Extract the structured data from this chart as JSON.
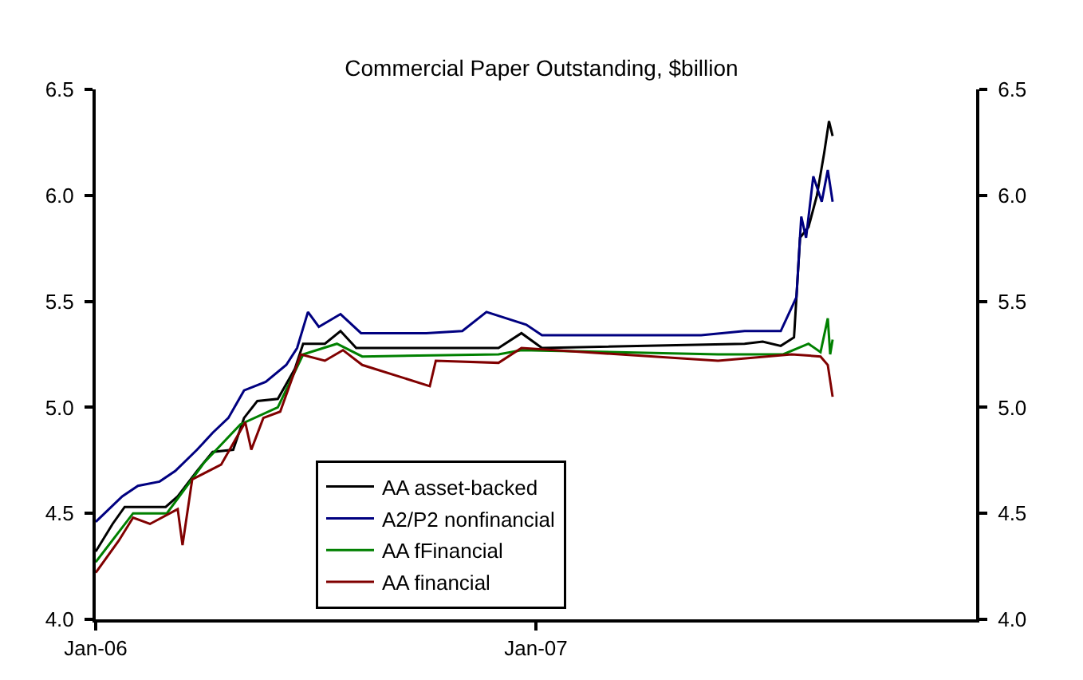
{
  "chart_data": {
    "type": "line",
    "title": "Commercial Paper Outstanding, $billion",
    "xlim": [
      "2006-01-01",
      "2008-01-01"
    ],
    "xticks": [
      {
        "value": "2006-01-01",
        "label": "Jan-06"
      },
      {
        "value": "2007-01-01",
        "label": "Jan-07"
      }
    ],
    "ylim": [
      4.0,
      6.5
    ],
    "yticks": [
      {
        "value": 4.0,
        "label": "4.0"
      },
      {
        "value": 4.5,
        "label": "4.5"
      },
      {
        "value": 5.0,
        "label": "5.0"
      },
      {
        "value": 5.5,
        "label": "5.5"
      },
      {
        "value": 6.0,
        "label": "6.0"
      },
      {
        "value": 6.5,
        "label": "6.5"
      }
    ],
    "y2lim": [
      4.0,
      6.5
    ],
    "y2ticks": [
      {
        "value": 4.0,
        "label": "4.0"
      },
      {
        "value": 4.5,
        "label": "4.5"
      },
      {
        "value": 5.0,
        "label": "5.0"
      },
      {
        "value": 5.5,
        "label": "5.5"
      },
      {
        "value": 6.0,
        "label": "6.0"
      },
      {
        "value": 6.5,
        "label": "6.5"
      }
    ],
    "grid": false,
    "legend": "bottom",
    "marker": "none",
    "line_style": "solid",
    "series": [
      {
        "name": "AA asset-backed",
        "color": "#000000",
        "x": [
          "2006-01-01",
          "2006-01-15",
          "2006-01-25",
          "2006-02-28",
          "2006-03-10",
          "2006-03-26",
          "2006-04-08",
          "2006-04-25",
          "2006-05-04",
          "2006-05-15",
          "2006-06-01",
          "2006-06-15",
          "2006-06-22",
          "2006-07-10",
          "2006-07-23",
          "2006-08-05",
          "2006-12-01",
          "2006-12-20",
          "2007-01-06",
          "2007-06-23",
          "2007-07-08",
          "2007-07-23",
          "2007-08-03",
          "2007-08-08",
          "2007-08-15",
          "2007-08-22",
          "2007-08-28",
          "2007-09-01",
          "2007-09-04"
        ],
        "values": [
          4.32,
          4.45,
          4.53,
          4.53,
          4.58,
          4.7,
          4.79,
          4.8,
          4.95,
          5.03,
          5.04,
          5.18,
          5.3,
          5.3,
          5.36,
          5.28,
          5.28,
          5.35,
          5.28,
          5.3,
          5.31,
          5.29,
          5.33,
          5.8,
          5.85,
          6.0,
          6.2,
          6.35,
          6.28
        ]
      },
      {
        "name": "A2/P2 nonfinancial",
        "color": "#000080",
        "x": [
          "2006-01-01",
          "2006-01-23",
          "2006-02-05",
          "2006-02-23",
          "2006-03-08",
          "2006-03-26",
          "2006-04-08",
          "2006-04-21",
          "2006-05-04",
          "2006-05-22",
          "2006-06-08",
          "2006-06-17",
          "2006-06-26",
          "2006-07-05",
          "2006-07-23",
          "2006-08-09",
          "2006-09-05",
          "2006-10-02",
          "2006-11-01",
          "2006-11-21",
          "2006-12-24",
          "2007-01-06",
          "2007-03-12",
          "2007-05-18",
          "2007-06-23",
          "2007-07-23",
          "2007-08-05",
          "2007-08-09",
          "2007-08-13",
          "2007-08-19",
          "2007-08-26",
          "2007-08-31",
          "2007-09-04"
        ],
        "values": [
          4.46,
          4.58,
          4.63,
          4.65,
          4.7,
          4.8,
          4.88,
          4.95,
          5.08,
          5.12,
          5.2,
          5.28,
          5.45,
          5.38,
          5.44,
          5.35,
          5.35,
          5.35,
          5.36,
          5.45,
          5.39,
          5.34,
          5.34,
          5.34,
          5.36,
          5.36,
          5.52,
          5.9,
          5.8,
          6.09,
          5.97,
          6.12,
          5.97
        ]
      },
      {
        "name": "AA fFinancial",
        "color": "#008000",
        "x": [
          "2006-01-01",
          "2006-02-01",
          "2006-03-01",
          "2006-04-01",
          "2006-05-01",
          "2006-06-01",
          "2006-06-22",
          "2006-07-20",
          "2006-08-10",
          "2006-12-01",
          "2006-12-20",
          "2007-06-01",
          "2007-07-25",
          "2007-08-15",
          "2007-08-25",
          "2007-08-31",
          "2007-09-02",
          "2007-09-04"
        ],
        "values": [
          4.27,
          4.5,
          4.5,
          4.74,
          4.92,
          5.0,
          5.25,
          5.3,
          5.24,
          5.25,
          5.27,
          5.25,
          5.25,
          5.3,
          5.26,
          5.42,
          5.25,
          5.32
        ]
      },
      {
        "name": "AA financial",
        "color": "#800000",
        "x": [
          "2006-01-01",
          "2006-01-20",
          "2006-02-01",
          "2006-02-15",
          "2006-03-10",
          "2006-03-14",
          "2006-03-22",
          "2006-04-15",
          "2006-05-05",
          "2006-05-10",
          "2006-05-20",
          "2006-06-03",
          "2006-06-20",
          "2006-07-10",
          "2006-07-25",
          "2006-08-10",
          "2006-10-05",
          "2006-10-10",
          "2006-12-01",
          "2006-12-20",
          "2007-06-01",
          "2007-08-01",
          "2007-08-25",
          "2007-08-31",
          "2007-09-04"
        ],
        "values": [
          4.22,
          4.37,
          4.48,
          4.45,
          4.52,
          4.35,
          4.66,
          4.73,
          4.93,
          4.8,
          4.95,
          4.98,
          5.25,
          5.22,
          5.27,
          5.2,
          5.1,
          5.22,
          5.21,
          5.28,
          5.22,
          5.25,
          5.24,
          5.2,
          5.05
        ]
      }
    ]
  }
}
